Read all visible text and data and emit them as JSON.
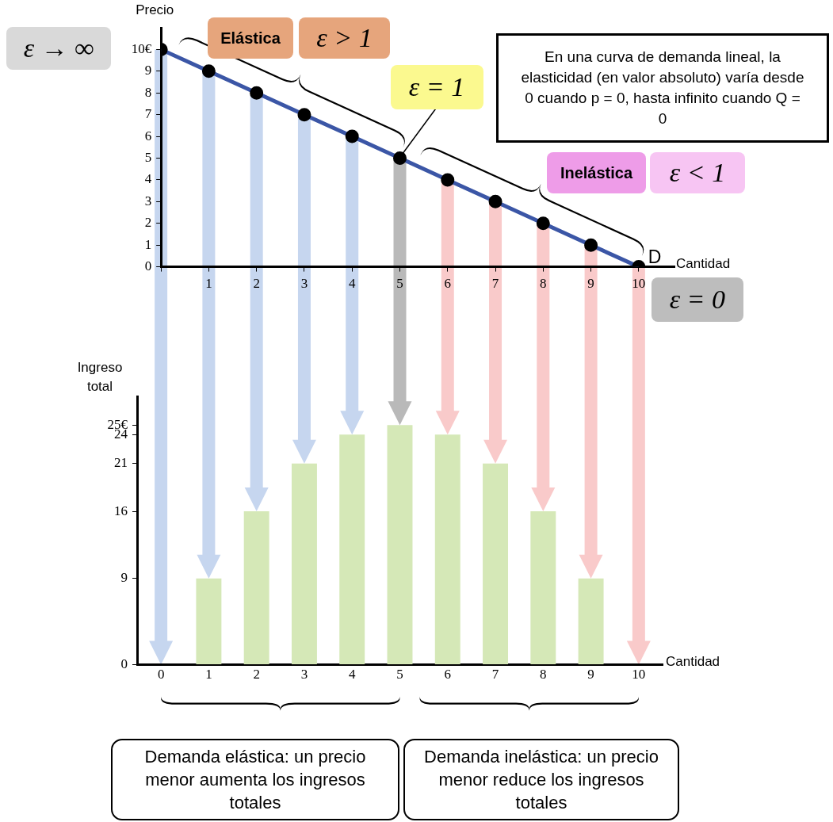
{
  "chart_data": [
    {
      "type": "line",
      "xlabel": "Cantidad",
      "ylabel": "Precio",
      "x": [
        0,
        1,
        2,
        3,
        4,
        5,
        6,
        7,
        8,
        9,
        10
      ],
      "series": [
        {
          "name": "D",
          "color": "#3b56a6",
          "values": [
            10,
            9,
            8,
            7,
            6,
            5,
            4,
            3,
            2,
            1,
            0
          ]
        }
      ],
      "xlim": [
        0,
        10.75
      ],
      "xticks": [
        {
          "value": 0,
          "label": null
        },
        1,
        2,
        3,
        4,
        5,
        6,
        7,
        8,
        9,
        10
      ],
      "ylim": [
        0,
        11
      ],
      "yticks": [
        0,
        1,
        2,
        3,
        4,
        5,
        6,
        7,
        8,
        9,
        {
          "value": 10,
          "label": "10€"
        }
      ],
      "marker": "circle",
      "grid": false,
      "legend": false,
      "annotations": [
        {
          "text": "ε → ∞",
          "x": 0,
          "y": 10
        },
        "Elástica",
        "ε > 1",
        {
          "text": "ε = 1",
          "x": 5,
          "y": 5
        },
        "Inelástica",
        "ε < 1",
        {
          "text": "ε = 0",
          "x": 10,
          "y": 0
        },
        "En una curva de demanda lineal, la elasticidad (en valor absoluto) varía desde 0 cuando p = 0, hasta infinito cuando Q = 0"
      ]
    },
    {
      "type": "bar",
      "xlabel": "Cantidad",
      "ylabel": "Ingreso total",
      "categories": [
        "0",
        "1",
        "2",
        "3",
        "4",
        "5",
        "6",
        "7",
        "8",
        "9",
        "10"
      ],
      "values": [
        0,
        9,
        16,
        21,
        24,
        25,
        24,
        21,
        16,
        9,
        0
      ],
      "color": "#d5e8b7",
      "ylim": [
        0,
        28
      ],
      "yticks": [
        0,
        9,
        16,
        21,
        24,
        {
          "value": 25,
          "label": "25€"
        }
      ],
      "grid": false,
      "legend": false,
      "annotations": [
        "Demanda elástica: un precio menor aumenta los ingresos totales",
        "Demanda inelástica: un precio menor reduce los ingresos totales"
      ]
    }
  ]
}
